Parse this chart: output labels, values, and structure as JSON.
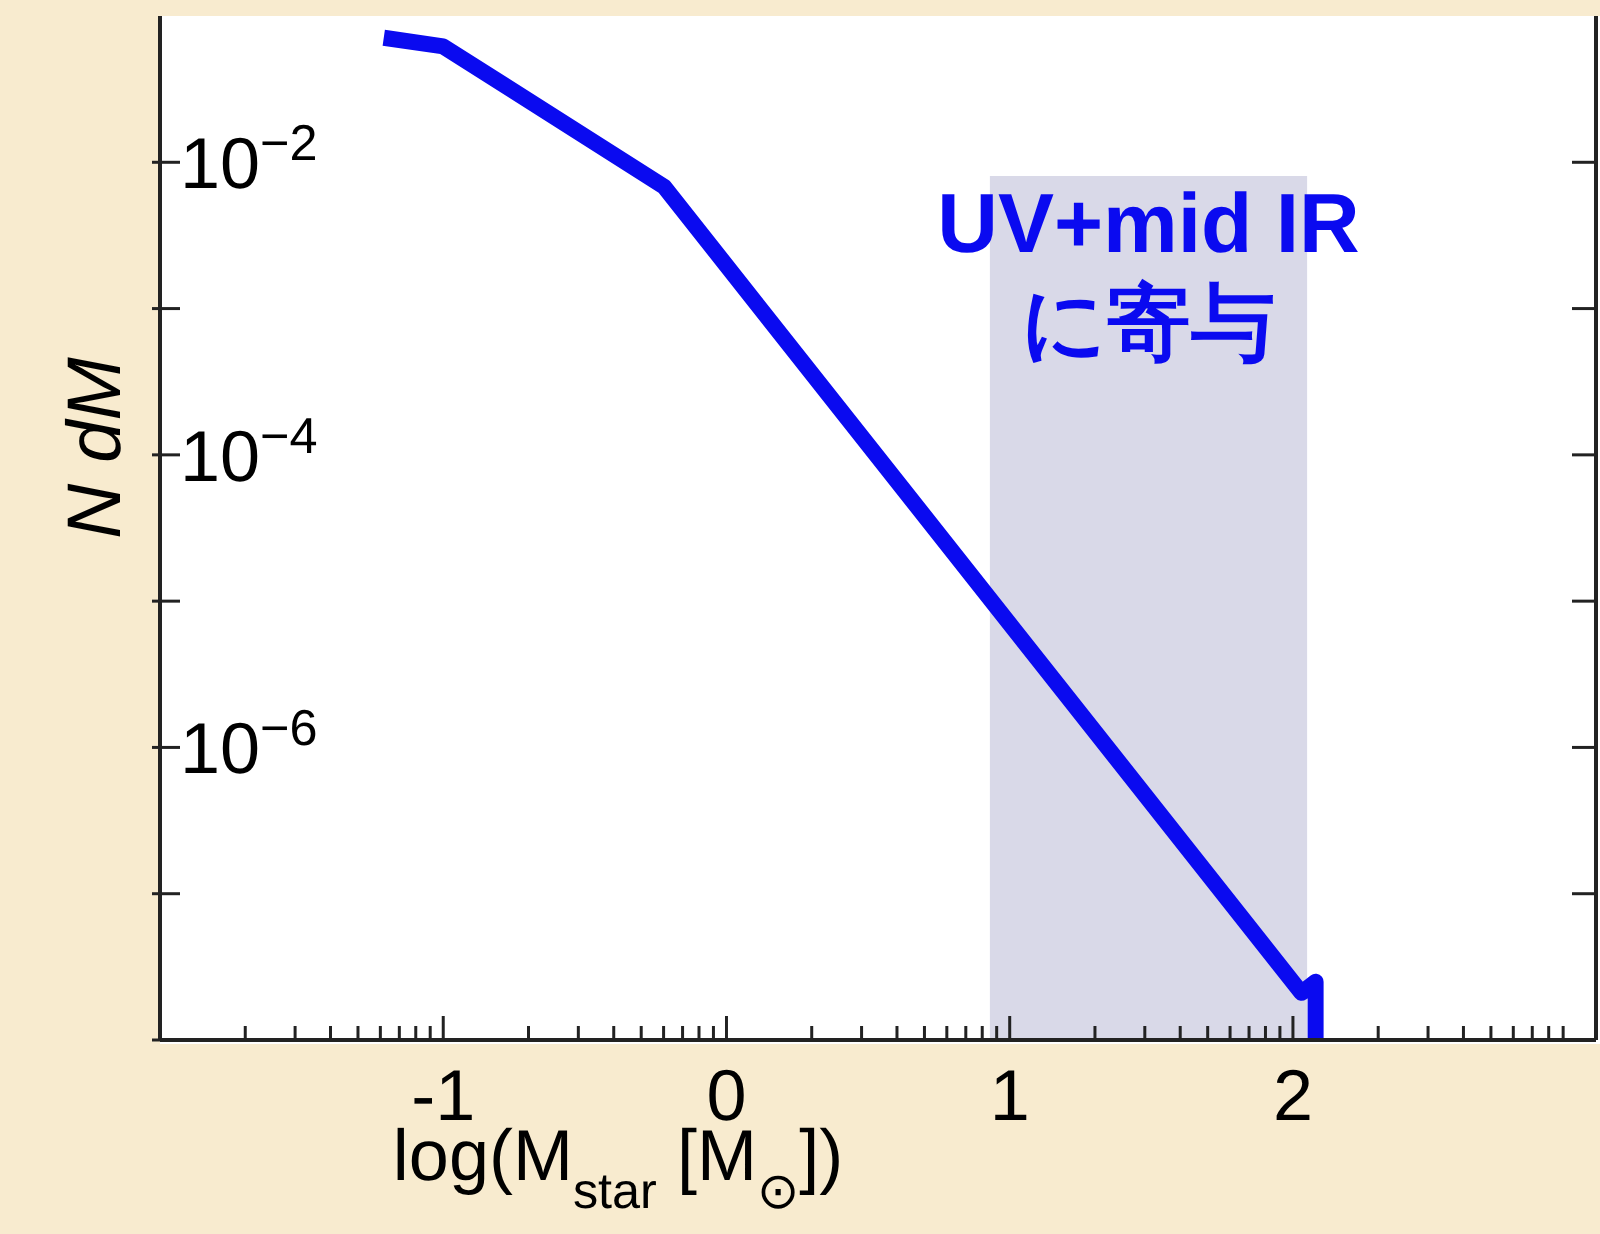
{
  "chart_data": {
    "type": "line",
    "xlabel": "log(M$_{star}$ [M$_{⊙}$])",
    "ylabel": "N dM",
    "log": "y",
    "xlim": [
      -2,
      3.07
    ],
    "ylim": [
      1e-08,
      0.1
    ],
    "xticks": [
      {
        "value": -1.699,
        "label": null
      },
      {
        "value": -1.523,
        "label": null
      },
      {
        "value": -1.398,
        "label": null
      },
      {
        "value": -1.301,
        "label": null
      },
      {
        "value": -1.222,
        "label": null
      },
      {
        "value": -1.155,
        "label": null
      },
      {
        "value": -1.097,
        "label": null
      },
      {
        "value": -1.046,
        "label": null
      },
      -1,
      {
        "value": -0.699,
        "label": null
      },
      {
        "value": -0.523,
        "label": null
      },
      {
        "value": -0.398,
        "label": null
      },
      {
        "value": -0.301,
        "label": null
      },
      {
        "value": -0.222,
        "label": null
      },
      {
        "value": -0.155,
        "label": null
      },
      {
        "value": -0.097,
        "label": null
      },
      {
        "value": -0.046,
        "label": null
      },
      0,
      {
        "value": 0.301,
        "label": null
      },
      {
        "value": 0.477,
        "label": null
      },
      {
        "value": 0.602,
        "label": null
      },
      {
        "value": 0.699,
        "label": null
      },
      {
        "value": 0.778,
        "label": null
      },
      {
        "value": 0.845,
        "label": null
      },
      {
        "value": 0.903,
        "label": null
      },
      {
        "value": 0.954,
        "label": null
      },
      1,
      {
        "value": 1.301,
        "label": null
      },
      {
        "value": 1.477,
        "label": null
      },
      {
        "value": 1.602,
        "label": null
      },
      {
        "value": 1.699,
        "label": null
      },
      {
        "value": 1.778,
        "label": null
      },
      {
        "value": 1.845,
        "label": null
      },
      {
        "value": 1.903,
        "label": null
      },
      {
        "value": 1.954,
        "label": null
      },
      2,
      {
        "value": 2.301,
        "label": null
      },
      {
        "value": 2.477,
        "label": null
      },
      {
        "value": 2.602,
        "label": null
      },
      {
        "value": 2.699,
        "label": null
      },
      {
        "value": 2.778,
        "label": null
      },
      {
        "value": 2.845,
        "label": null
      },
      {
        "value": 2.903,
        "label": null
      },
      {
        "value": 2.954,
        "label": null
      }
    ],
    "yticks": [
      {
        "value": 1e-08,
        "label": null
      },
      {
        "value": 1e-07,
        "label": null
      },
      {
        "value": 1e-06,
        "label": "10$^{−6}$"
      },
      {
        "value": 1e-05,
        "label": null
      },
      {
        "value": 0.0001,
        "label": "10$^{−4}$"
      },
      {
        "value": 0.001,
        "label": null
      },
      {
        "value": 0.01,
        "label": "10$^{−2}$"
      }
    ],
    "marker": "none",
    "line_style": "solid",
    "series": [
      {
        "color": "#0a0af0",
        "x": [
          -1.21,
          -1,
          -0.22,
          2.03,
          2.08,
          2.08
        ],
        "values": [
          0.071,
          0.062,
          0.0068,
          2.1e-08,
          2.5e-08,
          1e-08
        ]
      }
    ],
    "bands": [
      {
        "axis": "x",
        "from": 0.93,
        "to": 2.05,
        "label": "UV+mid IR\nに寄与",
        "color": "#d9d9e8"
      }
    ]
  }
}
